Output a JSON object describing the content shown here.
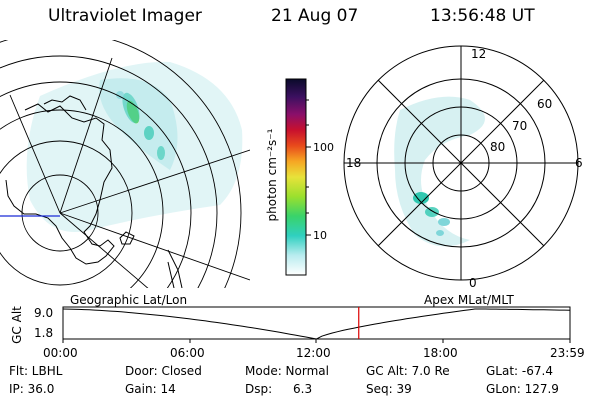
{
  "header": {
    "instrument": "Ultraviolet Imager",
    "date": "21 Aug 07",
    "time": "13:56:48 UT"
  },
  "colorbar": {
    "label": "photon cm⁻²s⁻¹",
    "ticks": [
      "100",
      "10"
    ]
  },
  "polar_plot": {
    "mlt_labels": [
      "12",
      "18",
      "6",
      "0"
    ],
    "lat_labels": [
      "60",
      "70",
      "80"
    ]
  },
  "panel_labels": {
    "geographic": "Geographic Lat/Lon",
    "apex": "Apex  MLat/MLT"
  },
  "orbit_plot": {
    "ylabel": "GC Alt",
    "y_ticks": [
      "9.0",
      "1.8"
    ],
    "x_ticks": [
      "00:00",
      "06:00",
      "12:00",
      "18:00",
      "23:59"
    ],
    "current_time_marker_hour": 14.0,
    "marker_color": "#dd0000"
  },
  "status": {
    "row1": {
      "filter": "Flt: LBHL",
      "door": "Door: Closed",
      "mode": "Mode: Normal",
      "gc_alt": "GC Alt: 7.0 Re",
      "glat": "GLat: -67.4"
    },
    "row2": {
      "ip": "IP: 36.0",
      "gain": "Gain: 14",
      "dsp_label": "Dsp:",
      "dsp_value": "6.3",
      "seq": "Seq: 39",
      "glon": "GLon: 127.9"
    }
  },
  "colors": {
    "aurora_light": "#c9ecee",
    "aurora_mid": "#7fd6d9",
    "aurora_strong": "#30c8b0",
    "aurora_peak": "#7ed957"
  }
}
